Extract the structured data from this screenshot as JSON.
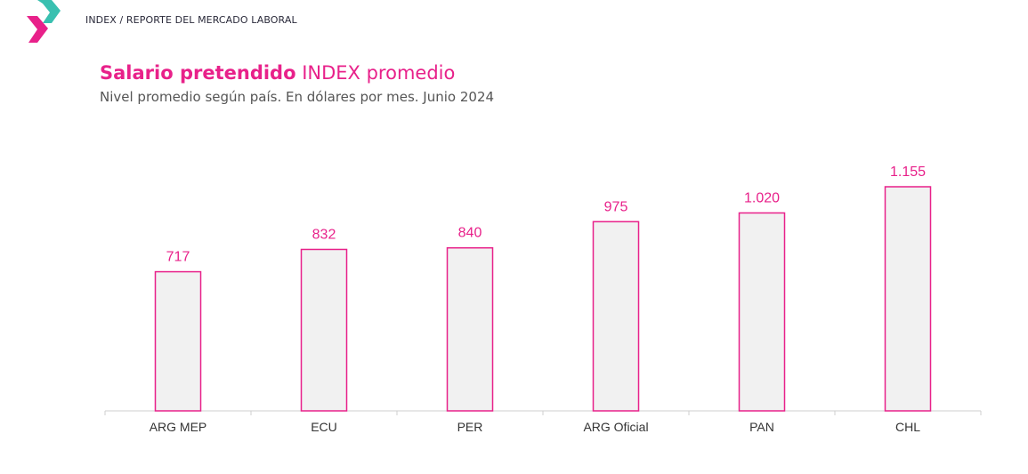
{
  "header": {
    "breadcrumb": "INDEX / REPORTE DEL MERCADO LABORAL",
    "logo_icon": "index-logo-chevron",
    "logo_colors": [
      "#39c0b0",
      "#e8218a"
    ]
  },
  "title": {
    "bold": "Salario pretendido",
    "light": "INDEX promedio"
  },
  "subtitle": "Nivel promedio según país. En dólares por mes. Junio 2024",
  "colors": {
    "accent": "#e8218a",
    "bar_fill": "#f1f1f1",
    "axis": "#cfcfcf",
    "label_text": "#333333"
  },
  "chart_data": {
    "type": "bar",
    "categories": [
      "ARG MEP",
      "ECU",
      "PER",
      "ARG Oficial",
      "PAN",
      "CHL"
    ],
    "values": [
      717,
      832,
      840,
      975,
      1020,
      1155
    ],
    "value_labels": [
      "717",
      "832",
      "840",
      "975",
      "1.020",
      "1.155"
    ],
    "title": "Salario pretendido INDEX promedio",
    "subtitle": "Nivel promedio según país. En dólares por mes. Junio 2024",
    "xlabel": "",
    "ylabel": "",
    "ylim": [
      0,
      1155
    ],
    "grid": false,
    "legend": "none"
  }
}
